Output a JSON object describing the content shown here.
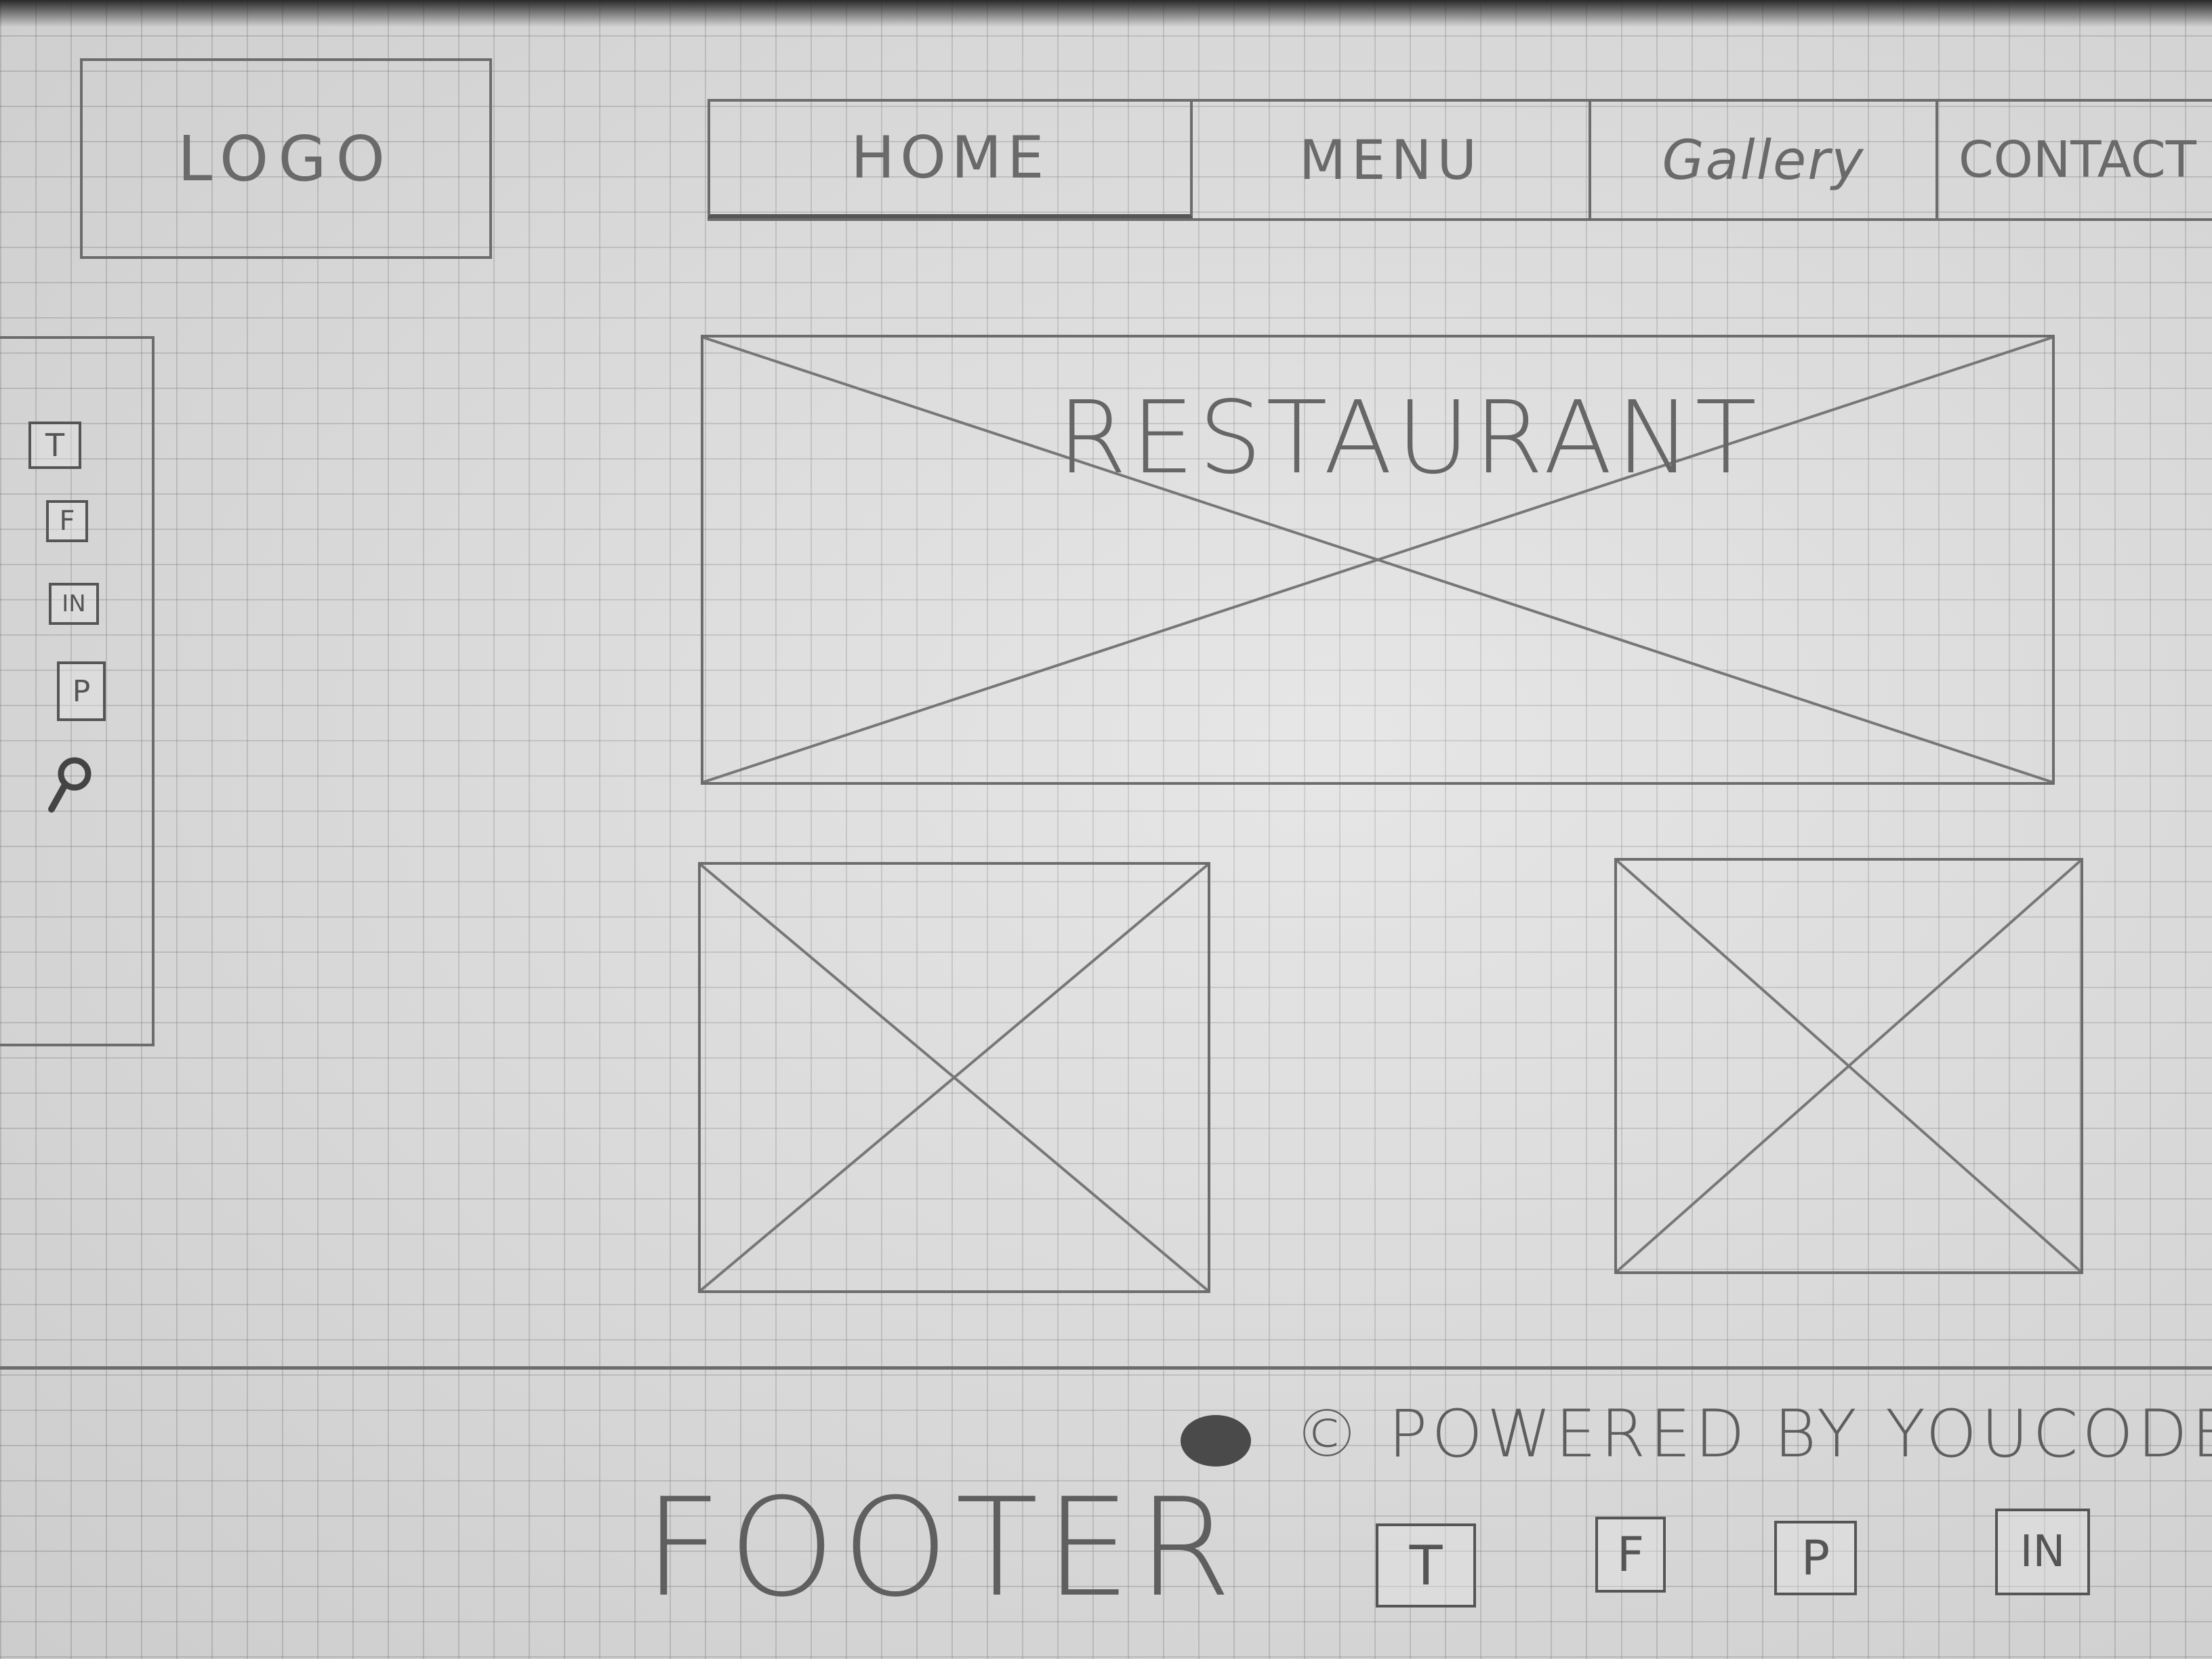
{
  "header": {
    "logo": "LOGO",
    "nav": [
      "HOME",
      "MENU",
      "Gallery",
      "CONTACT"
    ]
  },
  "sidebar": {
    "social_icons": [
      "T",
      "F",
      "IN",
      "P"
    ],
    "search_icon": "search-icon"
  },
  "hero": {
    "title": "RESTAURANT"
  },
  "footer": {
    "label": "FOOTER",
    "copyright": "© POWERED BY YOUCODE",
    "social_icons": [
      "T",
      "F",
      "P",
      "IN"
    ]
  }
}
